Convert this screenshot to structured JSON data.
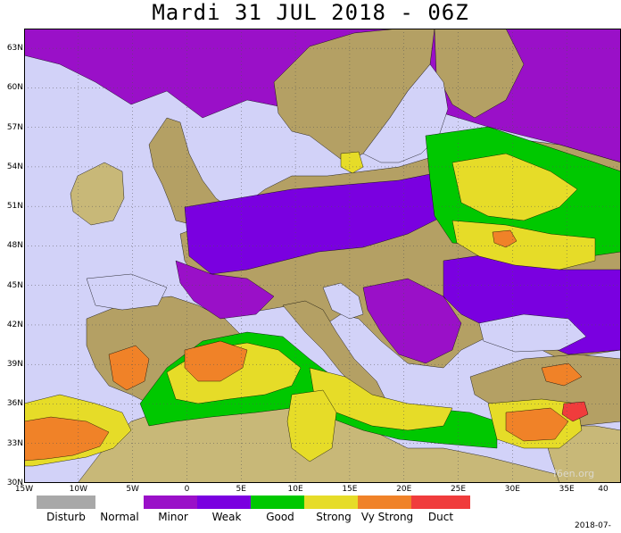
{
  "title": "Mardi 31 JUL 2018 - 06Z",
  "watermark": "f6en.org",
  "datestamp": "2018-07-",
  "latitudes": [
    {
      "label": "63N",
      "value": 63
    },
    {
      "label": "60N",
      "value": 60
    },
    {
      "label": "57N",
      "value": 57
    },
    {
      "label": "54N",
      "value": 54
    },
    {
      "label": "51N",
      "value": 51
    },
    {
      "label": "48N",
      "value": 48
    },
    {
      "label": "45N",
      "value": 45
    },
    {
      "label": "42N",
      "value": 42
    },
    {
      "label": "39N",
      "value": 39
    },
    {
      "label": "36N",
      "value": 36
    },
    {
      "label": "33N",
      "value": 33
    },
    {
      "label": "30N",
      "value": 30
    }
  ],
  "longitudes": [
    {
      "label": "15W",
      "value": -15
    },
    {
      "label": "10W",
      "value": -10
    },
    {
      "label": "5W",
      "value": -5
    },
    {
      "label": "0",
      "value": 0
    },
    {
      "label": "5E",
      "value": 5
    },
    {
      "label": "10E",
      "value": 10
    },
    {
      "label": "15E",
      "value": 15
    },
    {
      "label": "20E",
      "value": 20
    },
    {
      "label": "25E",
      "value": 25
    },
    {
      "label": "30E",
      "value": 30
    },
    {
      "label": "35E",
      "value": 35
    },
    {
      "label": "40",
      "value": 40
    }
  ],
  "legend": [
    {
      "label": "Disturb",
      "color": "#a8a8a8"
    },
    {
      "label": "Normal",
      "color": ""
    },
    {
      "label": "Minor",
      "color": "#9a10c8"
    },
    {
      "label": "Weak",
      "color": "#7a00e0"
    },
    {
      "label": "Good",
      "color": "#00c800"
    },
    {
      "label": "Strong",
      "color": "#e6dc28"
    },
    {
      "label": "Vy Strong",
      "color": "#f08228"
    },
    {
      "label": "Duct",
      "color": "#f03c3c"
    }
  ],
  "colors": {
    "sea": "#d2d2f8",
    "land": "#b4a064",
    "minor": "#9a10c8",
    "weak": "#7a00e0",
    "good": "#00c800",
    "strong": "#e6dc28",
    "very_strong": "#f08228",
    "duct": "#f03c3c",
    "desert": "#c8b878"
  }
}
